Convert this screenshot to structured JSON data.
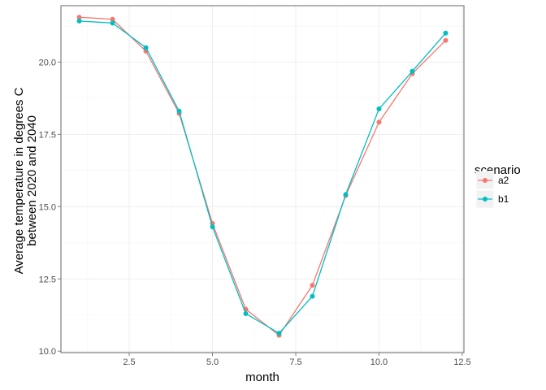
{
  "chart_data": {
    "type": "line",
    "xlabel": "month",
    "ylabel": "Average temperature in degrees C\nbetween 2020 and 2040",
    "xlim": [
      0.45,
      12.55
    ],
    "ylim": [
      9.95,
      21.95
    ],
    "x_ticks": [
      2.5,
      5.0,
      7.5,
      10.0,
      12.5
    ],
    "x_tick_labels": [
      "2.5",
      "5.0",
      "7.5",
      "10.0",
      "12.5"
    ],
    "y_ticks": [
      10.0,
      12.5,
      15.0,
      17.5,
      20.0
    ],
    "y_tick_labels": [
      "10.0",
      "12.5",
      "15.0",
      "17.5",
      "20.0"
    ],
    "grid": true,
    "legend": {
      "title": "scenario",
      "placement": "right"
    },
    "x": [
      1,
      2,
      3,
      4,
      5,
      6,
      7,
      8,
      9,
      10,
      11,
      12
    ],
    "series": [
      {
        "name": "a2",
        "color": "#F8766D",
        "values": [
          21.55,
          21.48,
          20.38,
          18.22,
          14.42,
          11.45,
          10.55,
          12.28,
          15.38,
          17.92,
          19.6,
          20.75
        ]
      },
      {
        "name": "b1",
        "color": "#00BFC4",
        "values": [
          21.42,
          21.35,
          20.5,
          18.3,
          14.3,
          11.3,
          10.62,
          11.9,
          15.42,
          18.38,
          19.68,
          21.0
        ]
      }
    ]
  }
}
